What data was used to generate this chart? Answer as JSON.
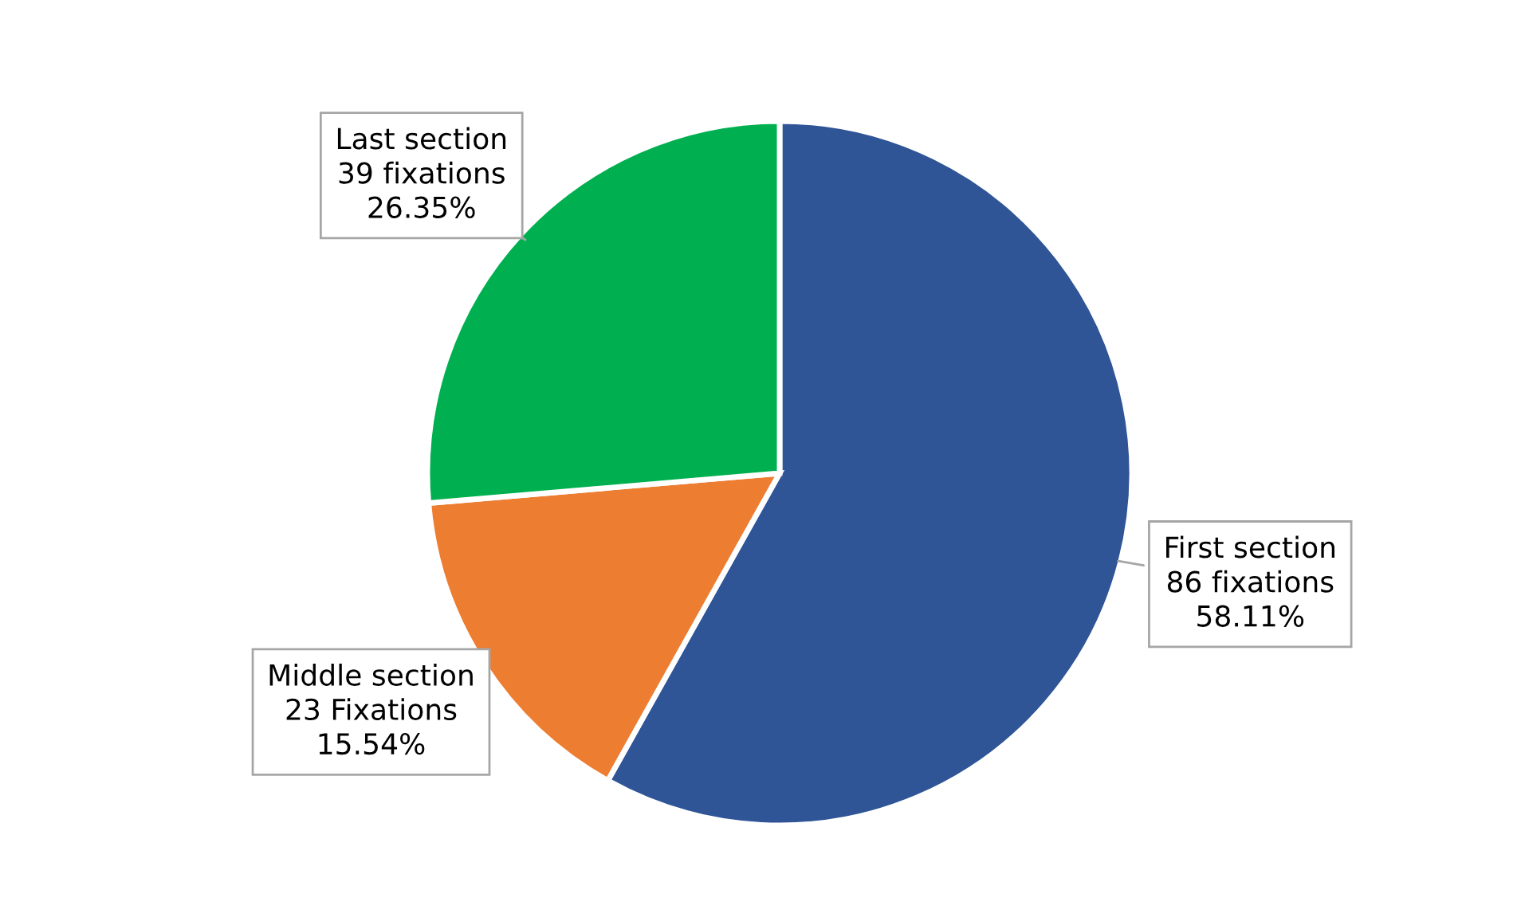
{
  "chart_data": {
    "type": "pie",
    "categories": [
      "First section",
      "Middle section",
      "Last section"
    ],
    "values": [
      86,
      23,
      39
    ],
    "value_labels": [
      "86 fixations\n58.11%",
      "23 Fixations\n15.54%",
      "39 fixations\n26.35%"
    ],
    "colors": [
      "#2f5597",
      "#ed7d31",
      "#00b050"
    ]
  }
}
